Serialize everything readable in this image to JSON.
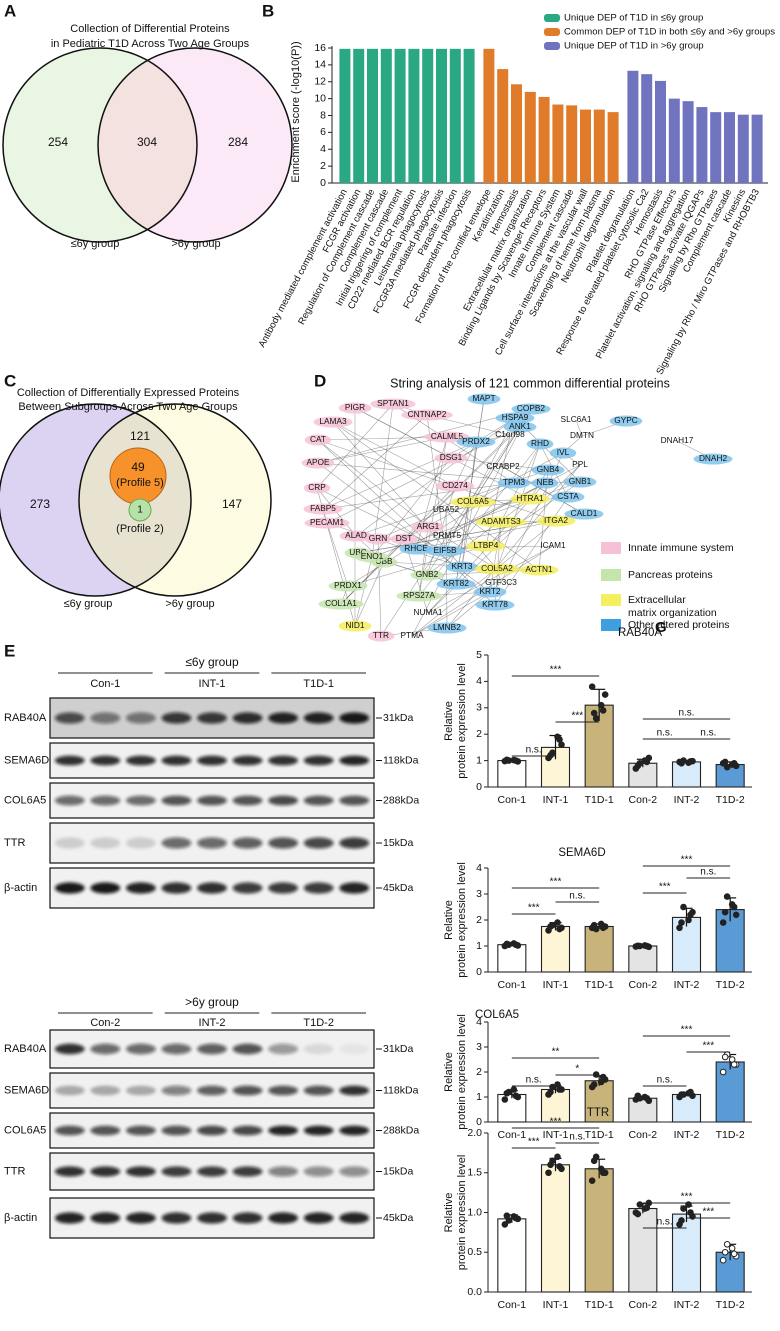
{
  "panel_labels": [
    "A",
    "B",
    "C",
    "D",
    "E"
  ],
  "venn_a": {
    "title": [
      "Collection of Differential Proteins",
      "in Pediatric T1D Across Two Age Groups"
    ],
    "counts": [
      254,
      304,
      284
    ],
    "set_labels": [
      "≤6y group",
      ">6y group"
    ]
  },
  "venn_c": {
    "title": [
      "Collection of Differentially Expressed Proteins",
      "Between Subgroups Across Two Age Groups"
    ],
    "counts": [
      273,
      121,
      147
    ],
    "profile_5": {
      "count": 49,
      "label": "(Profile 5)"
    },
    "profile_2": {
      "count": 1,
      "label": "(Profile 2)"
    },
    "set_labels": [
      "≤6y group",
      ">6y group"
    ]
  },
  "network": {
    "title": "String analysis of 121 common differential proteins",
    "nodes": [
      {
        "label": "MAPT",
        "color": "#7fc3ec"
      },
      {
        "label": "PIGR",
        "color": "#f6c1d6"
      },
      {
        "label": "SPTAN1",
        "color": "#f6c1d6"
      },
      {
        "label": "CNTNAP2",
        "color": "#f6c1d6"
      },
      {
        "label": "COPB2",
        "color": "#7fc3ec"
      },
      {
        "label": "HSPA9",
        "color": "#7fc3ec"
      },
      {
        "label": "ANK1",
        "color": "#7fc3ec"
      },
      {
        "label": "SLC6A1"
      },
      {
        "label": "GYPC",
        "color": "#7fc3ec"
      },
      {
        "label": "LAMA3",
        "color": "#f6c1d6"
      },
      {
        "label": "C1orf98"
      },
      {
        "label": "DMTN"
      },
      {
        "label": "DNAH17"
      },
      {
        "label": "CAT",
        "color": "#f6c1d6"
      },
      {
        "label": "CALML5",
        "color": "#f6c1d6"
      },
      {
        "label": "PRDX2",
        "color": "#7fc3ec"
      },
      {
        "label": "RHD",
        "color": "#7fc3ec"
      },
      {
        "label": "DNAH2",
        "color": "#7fc3ec"
      },
      {
        "label": "DSG1",
        "color": "#f6c1d6"
      },
      {
        "label": "IVL",
        "color": "#7fc3ec"
      },
      {
        "label": "PPL"
      },
      {
        "label": "APOE",
        "color": "#f6c1d6"
      },
      {
        "label": "CRABP2"
      },
      {
        "label": "GNB4",
        "color": "#7fc3ec"
      },
      {
        "label": "GNB1",
        "color": "#7fc3ec"
      },
      {
        "label": "TPM3",
        "color": "#7fc3ec"
      },
      {
        "label": "NEB",
        "color": "#7fc3ec"
      },
      {
        "label": "CRP",
        "color": "#f6c1d6"
      },
      {
        "label": "CD274",
        "color": "#f6c1d6"
      },
      {
        "label": "CSTA",
        "color": "#7fc3ec"
      },
      {
        "label": "HTRA1",
        "color": "#f4ef5e"
      },
      {
        "label": "COL6A5",
        "color": "#f4ef5e"
      },
      {
        "label": "FABP5",
        "color": "#f6c1d6"
      },
      {
        "label": "CALD1",
        "color": "#7fc3ec"
      },
      {
        "label": "UBA52"
      },
      {
        "label": "ADAMTS3",
        "color": "#f4ef5e"
      },
      {
        "label": "ITGA2",
        "color": "#f4ef5e"
      },
      {
        "label": "PECAM1",
        "color": "#f6c1d6"
      },
      {
        "label": "ARG1",
        "color": "#f6c1d6"
      },
      {
        "label": "PRMT5"
      },
      {
        "label": "ALAD",
        "color": "#f6c1d6"
      },
      {
        "label": "GRN",
        "color": "#f6c1d6"
      },
      {
        "label": "DST",
        "color": "#f6c1d6"
      },
      {
        "label": "RHCE",
        "color": "#7fc3ec"
      },
      {
        "label": "UBC",
        "color": "#c5e5ad"
      },
      {
        "label": "UBB",
        "color": "#c5e5ad"
      },
      {
        "label": "EIF5B",
        "color": "#7fc3ec"
      },
      {
        "label": "LTBP4",
        "color": "#f4ef5e"
      },
      {
        "label": "ICAM1"
      },
      {
        "label": "ENO1",
        "color": "#c5e5ad"
      },
      {
        "label": "KRT3",
        "color": "#7fc3ec"
      },
      {
        "label": "COL5A2",
        "color": "#f4ef5e"
      },
      {
        "label": "ACTN1",
        "color": "#f4ef5e"
      },
      {
        "label": "GNB2",
        "color": "#c5e5ad"
      },
      {
        "label": "PRDX1",
        "color": "#c5e5ad"
      },
      {
        "label": "KRT82",
        "color": "#7fc3ec"
      },
      {
        "label": "GTF3C3"
      },
      {
        "label": "RPS27A",
        "color": "#c5e5ad"
      },
      {
        "label": "KRT2",
        "color": "#7fc3ec"
      },
      {
        "label": "COL1A1",
        "color": "#c5e5ad"
      },
      {
        "label": "KRT78",
        "color": "#7fc3ec"
      },
      {
        "label": "NUMA1"
      },
      {
        "label": "NID1",
        "color": "#f4ef5e"
      },
      {
        "label": "LMNB2",
        "color": "#7fc3ec"
      },
      {
        "label": "TTR",
        "color": "#f6c1d6"
      },
      {
        "label": "PTMA"
      }
    ],
    "legend": [
      {
        "label": "Innate immune system",
        "color": "#f6c1d6"
      },
      {
        "label": "Pancreas proteins",
        "color": "#c5e5ad"
      },
      {
        "label": "Extracellular matrix organization",
        "color": "#f4ef5e"
      },
      {
        "label": "Other altered proteins",
        "color": "#3d9ee0"
      }
    ],
    "overlay_text": "G"
  },
  "blots": [
    {
      "group": "≤6y group",
      "lanes": [
        "Con-1",
        "INT-1",
        "T1D-1"
      ],
      "proteins": [
        "RAB40A",
        "SEMA6D",
        "COL6A5",
        "TTR",
        "β-actin"
      ],
      "sizes": [
        "31kDa",
        "118kDa",
        "288kDa",
        "15kDa",
        "45kDa"
      ]
    },
    {
      "group": ">6y group",
      "lanes": [
        "Con-2",
        "INT-2",
        "T1D-2"
      ],
      "proteins": [
        "RAB40A",
        "SEMA6D",
        "COL6A5",
        "TTR",
        "β-actin"
      ],
      "sizes": [
        "31kDa",
        "118kDa",
        "288kDa",
        "15kDa",
        "45kDa"
      ]
    }
  ],
  "chart_data": [
    {
      "type": "bar",
      "ylabel": "Enrichment score (-log10(P))",
      "categories": [
        "Antibody mediated complement activation",
        "FCGR activation",
        "Regulation of Complement cascade",
        "Complement cascade",
        "Initial triggering of complement",
        "CD22 mediated BCR regulation",
        "Leishmania phagocytosis",
        "FCGR3A mediated phagocytosis",
        "Parasite infection",
        "FCGR dependent phagocytosis",
        "Formation of the cornified envelope",
        "Keratinization",
        "Hemostasis",
        "Extracellular matrix organization",
        "Binding Ligands by Scavenger Receptors",
        "Innate Immune System",
        "Complement cascade",
        "Cell surface interactions at the vascular wall",
        "Scavenging of heme from plasma",
        "Neutrophil degranulation",
        "Platelet degranulation",
        "Response to elevated platelet cytosolic Ca2",
        "Hemostasis",
        "RHO GTPase Effectors",
        "Platelet activation, signaling and aggregation",
        "RHO GTPases activate IQGAPs",
        "Signaling by Rho GTPases",
        "Complement cascade",
        "Kinesins",
        "Signaling by Rho / Miro GTPases and RHOBTB3"
      ],
      "series": [
        {
          "name": "Unique DEP of T1D in ≤6y group",
          "color": "#2aa883",
          "values": [
            15.9,
            15.9,
            15.9,
            15.9,
            15.9,
            15.9,
            15.9,
            15.9,
            15.9,
            15.9,
            null,
            null,
            null,
            null,
            null,
            null,
            null,
            null,
            null,
            null,
            null,
            null,
            null,
            null,
            null,
            null,
            null,
            null,
            null,
            null
          ]
        },
        {
          "name": "Common DEP of T1D in both ≤6y and >6y groups",
          "color": "#e07b2a",
          "values": [
            null,
            null,
            null,
            null,
            null,
            null,
            null,
            null,
            null,
            null,
            15.9,
            13.5,
            11.7,
            10.8,
            10.2,
            9.3,
            9.2,
            8.7,
            8.7,
            8.4,
            null,
            null,
            null,
            null,
            null,
            null,
            null,
            null,
            null,
            null
          ]
        },
        {
          "name": "Unique DEP of T1D in >6y group",
          "color": "#7074bf",
          "values": [
            null,
            null,
            null,
            null,
            null,
            null,
            null,
            null,
            null,
            null,
            null,
            null,
            null,
            null,
            null,
            null,
            null,
            null,
            null,
            null,
            13.3,
            12.9,
            12.1,
            10.0,
            9.7,
            9.0,
            8.4,
            8.4,
            8.1,
            8.1
          ]
        }
      ],
      "ylim": [
        0,
        16
      ],
      "yticks": [
        0,
        2,
        4,
        6,
        8,
        10,
        12,
        14,
        16
      ],
      "legend": "upper right"
    },
    {
      "type": "bar",
      "title": "RAB40A",
      "ylabel": [
        "Relative",
        "protein expression level"
      ],
      "categories": [
        "Con-1",
        "INT-1",
        "T1D-1",
        "Con-2",
        "INT-2",
        "T1D-2"
      ],
      "values": [
        1.0,
        1.5,
        3.1,
        0.9,
        0.95,
        0.85
      ],
      "errors": [
        0.05,
        0.45,
        0.6,
        0.15,
        0.05,
        0.1
      ],
      "points": [
        [
          0.98,
          1.0,
          1.02,
          0.97,
          1.03,
          1.0
        ],
        [
          1.1,
          1.3,
          1.9,
          1.6,
          1.2,
          1.8
        ],
        [
          3.8,
          2.6,
          3.1,
          3.5,
          2.8,
          2.9
        ],
        [
          0.7,
          0.9,
          1.0,
          1.1,
          0.8,
          0.95
        ],
        [
          0.95,
          1.0,
          0.92,
          0.98,
          0.9,
          0.97
        ],
        [
          0.9,
          0.75,
          0.85,
          0.8,
          0.95,
          0.9
        ]
      ],
      "colors": [
        "#ffffff",
        "#fdf5d6",
        "#c8b47a",
        "#e4e4e4",
        "#d8ebfa",
        "#5b9bd5"
      ],
      "ylim": [
        0,
        5
      ],
      "yticks": [
        0,
        1,
        2,
        3,
        4,
        5
      ],
      "annotations": [
        "***",
        "***",
        "n.s.",
        "n.s.",
        "n.s.",
        "n.s."
      ]
    },
    {
      "type": "bar",
      "title": "SEMA6D",
      "ylabel": [
        "Relative",
        "protein expression level"
      ],
      "categories": [
        "Con-1",
        "INT-1",
        "T1D-1",
        "Con-2",
        "INT-2",
        "T1D-2"
      ],
      "values": [
        1.05,
        1.75,
        1.75,
        1.0,
        2.1,
        2.4
      ],
      "errors": [
        0.05,
        0.15,
        0.1,
        0.03,
        0.35,
        0.45
      ],
      "points": [
        [
          1.0,
          1.05,
          1.1,
          1.02,
          1.08,
          1.05
        ],
        [
          1.6,
          1.8,
          1.9,
          1.7,
          1.75,
          1.65
        ],
        [
          1.7,
          1.65,
          1.85,
          1.75,
          1.8,
          1.7
        ],
        [
          0.98,
          1.0,
          1.02,
          0.97,
          1.01,
          1.0
        ],
        [
          1.7,
          2.5,
          2.0,
          2.3,
          1.9,
          2.2
        ],
        [
          1.9,
          2.9,
          2.6,
          2.2,
          2.3,
          2.5
        ]
      ],
      "colors": [
        "#ffffff",
        "#fdf5d6",
        "#c8b47a",
        "#e4e4e4",
        "#d8ebfa",
        "#5b9bd5"
      ],
      "ylim": [
        0,
        4
      ],
      "yticks": [
        0,
        1,
        2,
        3,
        4
      ],
      "annotations": [
        "***",
        "***",
        "n.s.",
        "***",
        "***",
        "n.s."
      ]
    },
    {
      "type": "bar",
      "title": "COL6A5",
      "ylabel": [
        "Relative",
        "protein expression level"
      ],
      "categories": [
        "Con-1",
        "INT-1",
        "T1D-1",
        "Con-2",
        "INT-2",
        "T1D-2"
      ],
      "values": [
        1.1,
        1.3,
        1.65,
        0.95,
        1.1,
        2.4
      ],
      "errors": [
        0.15,
        0.15,
        0.2,
        0.08,
        0.05,
        0.3
      ],
      "points": [
        [
          0.9,
          1.2,
          1.3,
          1.0,
          1.15,
          1.05
        ],
        [
          1.1,
          1.4,
          1.5,
          1.3,
          1.2,
          1.3
        ],
        [
          1.4,
          1.9,
          1.6,
          1.7,
          1.5,
          1.8
        ],
        [
          0.9,
          0.95,
          1.0,
          0.85,
          1.05,
          0.95
        ],
        [
          1.0,
          1.1,
          1.15,
          1.05,
          1.1,
          1.2
        ],
        [
          2.0,
          2.7,
          2.5,
          2.3,
          2.6,
          2.3
        ]
      ],
      "colors": [
        "#ffffff",
        "#fdf5d6",
        "#c8b47a",
        "#e4e4e4",
        "#d8ebfa",
        "#5b9bd5"
      ],
      "ylim": [
        0,
        4
      ],
      "yticks": [
        0,
        1,
        2,
        3,
        4
      ],
      "annotations": [
        "**",
        "n.s.",
        "*",
        "***",
        "***",
        "n.s."
      ]
    },
    {
      "type": "bar",
      "title": "TTR",
      "ylabel": [
        "Relative",
        "protein expression level"
      ],
      "categories": [
        "Con-1",
        "INT-1",
        "T1D-1",
        "Con-2",
        "INT-2",
        "T1D-2"
      ],
      "values": [
        0.92,
        1.6,
        1.55,
        1.05,
        0.98,
        0.5
      ],
      "errors": [
        0.05,
        0.08,
        0.12,
        0.06,
        0.1,
        0.1
      ],
      "points": [
        [
          0.85,
          0.9,
          0.95,
          0.92,
          0.96,
          0.93
        ],
        [
          1.5,
          1.65,
          1.7,
          1.55,
          1.6,
          1.58
        ],
        [
          1.4,
          1.7,
          1.55,
          1.5,
          1.65,
          1.5
        ],
        [
          1.0,
          1.1,
          1.05,
          1.12,
          0.98,
          1.06
        ],
        [
          0.85,
          1.05,
          1.1,
          0.95,
          0.9,
          1.0
        ],
        [
          0.4,
          0.6,
          0.55,
          0.45,
          0.5,
          0.48
        ]
      ],
      "colors": [
        "#ffffff",
        "#fdf5d6",
        "#c8b47a",
        "#e4e4e4",
        "#d8ebfa",
        "#5b9bd5"
      ],
      "ylim": [
        0,
        2
      ],
      "yticks": [
        {
          "value": 0,
          "label": "0.0"
        },
        0.5,
        {
          "value": 1,
          "label": "1.0"
        },
        1.5,
        {
          "value": 2,
          "label": "2.0"
        }
      ],
      "annotations": [
        "***",
        "***",
        "n.s.",
        "***",
        "n.s.",
        "***"
      ]
    }
  ]
}
